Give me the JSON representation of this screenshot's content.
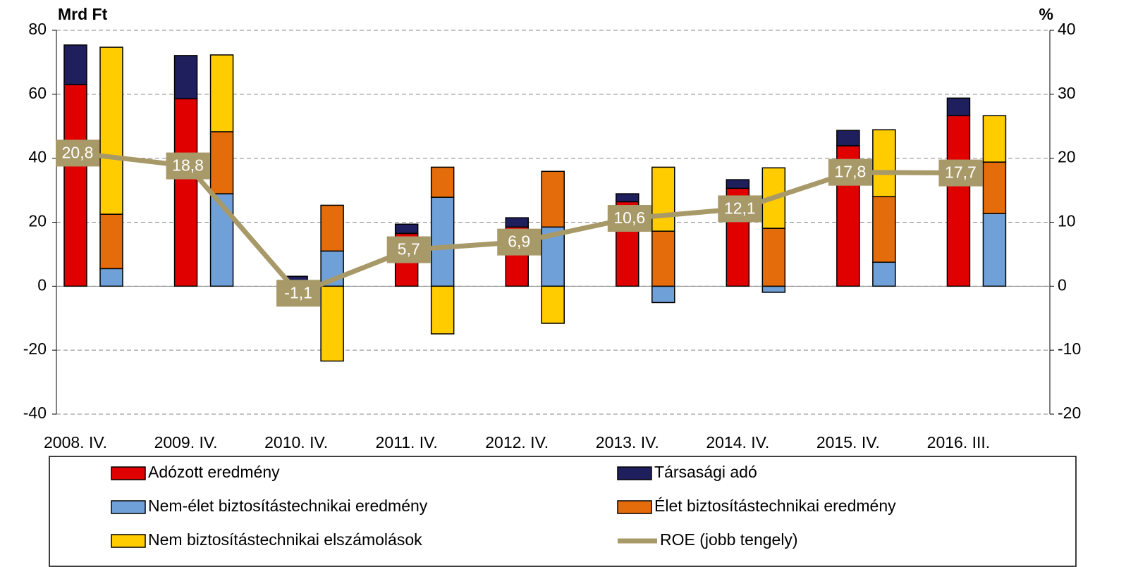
{
  "chart_data": {
    "type": "bar",
    "y_label": "Mrd Ft",
    "y2_label": "%",
    "categories": [
      "2008. IV.",
      "2009. IV.",
      "2010. IV.",
      "2011. IV.",
      "2012. IV.",
      "2013. IV.",
      "2014. IV.",
      "2015. IV.",
      "2016. III."
    ],
    "series": [
      {
        "name": "Adózott eredmény",
        "color": "#e00000",
        "stack": "left",
        "values": [
          63.0,
          58.6,
          1.5,
          16.5,
          18.5,
          26.4,
          30.6,
          43.9,
          53.3
        ]
      },
      {
        "name": "Társasági adó",
        "color": "#1f1f5e",
        "stack": "left",
        "values": [
          12.4,
          13.5,
          1.6,
          2.9,
          2.9,
          2.5,
          2.7,
          4.8,
          5.5
        ]
      },
      {
        "name": "Nem-élet biztosítástechnikai eredmény",
        "color": "#6fa0d8",
        "stack": "right",
        "values": [
          5.5,
          28.9,
          11.0,
          27.8,
          18.5,
          -5.1,
          -1.9,
          7.5,
          22.7
        ]
      },
      {
        "name": "Élet biztosítástechnikai eredmény",
        "color": "#e46c0a",
        "stack": "right",
        "values": [
          17.0,
          19.4,
          14.3,
          9.4,
          17.4,
          17.2,
          18.1,
          20.5,
          16.1
        ]
      },
      {
        "name": "Nem biztosítástechnikai elszámolások",
        "color": "#ffcc00",
        "stack": "right",
        "values": [
          52.2,
          24.0,
          -23.4,
          -14.9,
          -11.6,
          20.0,
          18.9,
          20.9,
          14.5
        ]
      },
      {
        "name": "ROE (jobb tengely)",
        "color": "#a89968",
        "type": "line",
        "axis": "y2",
        "values": [
          20.8,
          18.8,
          -1.1,
          5.7,
          6.9,
          10.6,
          12.1,
          17.8,
          17.7
        ],
        "value_labels": [
          "20,8",
          "18,8",
          "-1,1",
          "5,7",
          "6,9",
          "10,6",
          "12,1",
          "17,8",
          "17,7"
        ]
      }
    ],
    "ylim": [
      -40,
      80
    ],
    "yticks": [
      -40,
      -20,
      0,
      20,
      40,
      60,
      80
    ],
    "y2lim": [
      -20,
      40
    ],
    "y2ticks": [
      -20,
      -10,
      0,
      10,
      20,
      30,
      40
    ],
    "grid": true,
    "legend": "bottom"
  }
}
